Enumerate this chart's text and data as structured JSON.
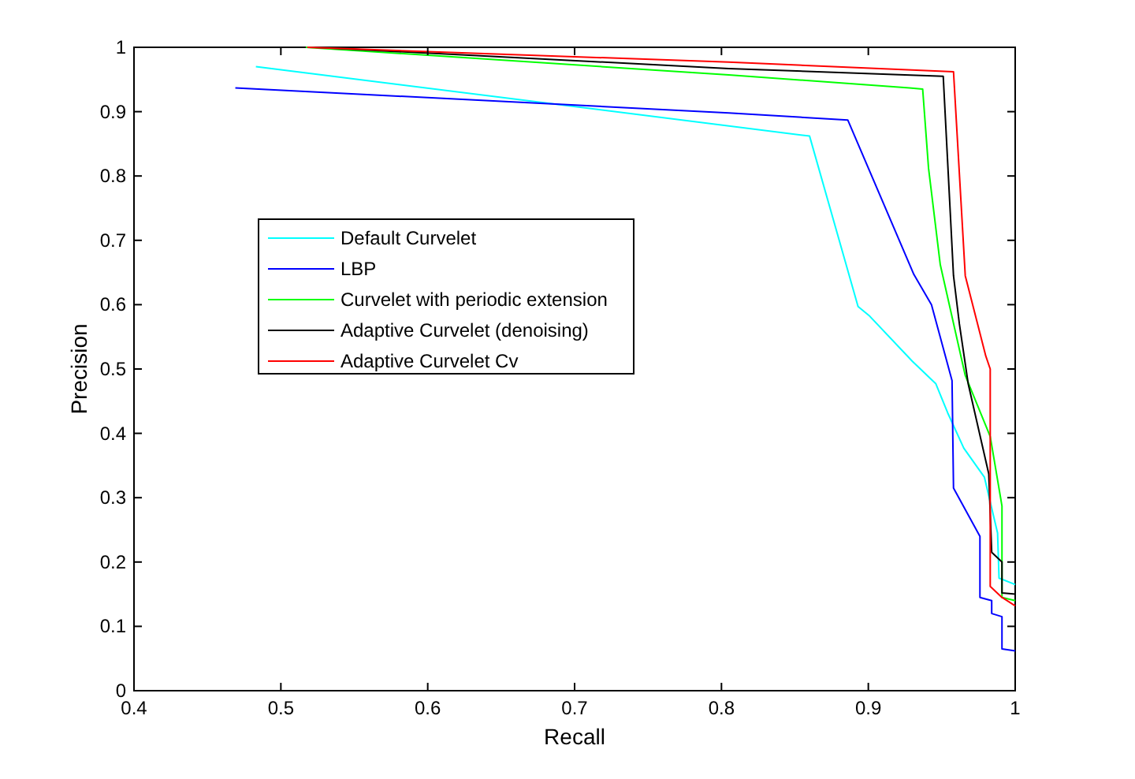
{
  "chart_data": {
    "type": "line",
    "xlabel": "Recall",
    "ylabel": "Precision",
    "xlim": [
      0.4,
      1
    ],
    "ylim": [
      0,
      1
    ],
    "xticks": [
      0.4,
      0.5,
      0.6,
      0.7,
      0.8,
      0.9,
      1
    ],
    "yticks": [
      0,
      0.1,
      0.2,
      0.3,
      0.4,
      0.5,
      0.6,
      0.7,
      0.8,
      0.9,
      1
    ],
    "legend": "center left",
    "grid": false,
    "marker": "none",
    "line_style": "solid",
    "series": [
      {
        "name": "Default Curvelet",
        "color": "#00ffff",
        "x": [
          0.483,
          0.86,
          0.893,
          0.901,
          0.93,
          0.946,
          0.954,
          0.965,
          0.979,
          0.988,
          0.989,
          1
        ],
        "values": [
          0.97,
          0.862,
          0.597,
          0.582,
          0.512,
          0.477,
          0.432,
          0.377,
          0.332,
          0.245,
          0.175,
          0.165
        ]
      },
      {
        "name": "LBP",
        "color": "#0000ff",
        "x": [
          0.469,
          0.805,
          0.886,
          0.931,
          0.943,
          0.957,
          0.958,
          0.976,
          0.976,
          0.984,
          0.984,
          0.991,
          0.991,
          1
        ],
        "values": [
          0.937,
          0.898,
          0.887,
          0.647,
          0.6,
          0.482,
          0.315,
          0.24,
          0.145,
          0.14,
          0.12,
          0.115,
          0.065,
          0.062
        ]
      },
      {
        "name": "Curvelet with periodic extension",
        "color": "#00ff00",
        "x": [
          0.517,
          0.805,
          0.928,
          0.937,
          0.941,
          0.949,
          0.966,
          0.983,
          0.991,
          0.991,
          1
        ],
        "values": [
          1,
          0.957,
          0.937,
          0.935,
          0.812,
          0.662,
          0.49,
          0.395,
          0.287,
          0.145,
          0.14
        ]
      },
      {
        "name": "Adaptive Curvelet (denoising)",
        "color": "#000000",
        "x": [
          0.523,
          0.805,
          0.951,
          0.958,
          0.962,
          0.968,
          0.982,
          0.984,
          0.991,
          0.991,
          1
        ],
        "values": [
          1,
          0.967,
          0.955,
          0.645,
          0.57,
          0.477,
          0.337,
          0.215,
          0.2,
          0.152,
          0.15
        ]
      },
      {
        "name": "Adaptive Curvelet Cv",
        "color": "#ff0000",
        "x": [
          0.518,
          0.805,
          0.958,
          0.966,
          0.98,
          0.983,
          0.983,
          0.991,
          1
        ],
        "values": [
          1,
          0.977,
          0.962,
          0.645,
          0.52,
          0.5,
          0.162,
          0.145,
          0.132
        ]
      }
    ]
  }
}
